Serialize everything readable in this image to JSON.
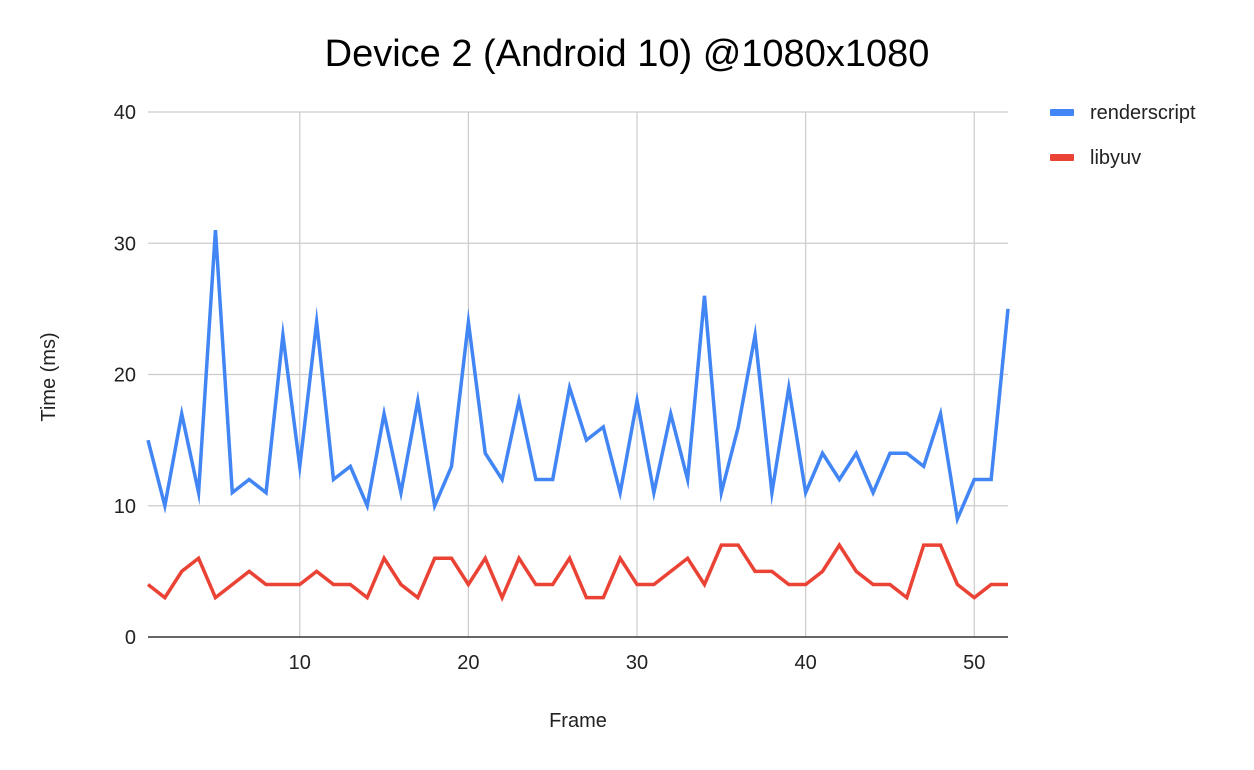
{
  "chart_data": {
    "type": "line",
    "title": "Device 2 (Android 10) @1080x1080",
    "xlabel": "Frame",
    "ylabel": "Time (ms)",
    "xlim": [
      1,
      52
    ],
    "ylim": [
      0,
      40
    ],
    "x_ticks": [
      10,
      20,
      30,
      40,
      50
    ],
    "y_ticks": [
      0,
      10,
      20,
      30,
      40
    ],
    "grid": true,
    "legend_position": "right",
    "x": [
      1,
      2,
      3,
      4,
      5,
      6,
      7,
      8,
      9,
      10,
      11,
      12,
      13,
      14,
      15,
      16,
      17,
      18,
      19,
      20,
      21,
      22,
      23,
      24,
      25,
      26,
      27,
      28,
      29,
      30,
      31,
      32,
      33,
      34,
      35,
      36,
      37,
      38,
      39,
      40,
      41,
      42,
      43,
      44,
      45,
      46,
      47,
      48,
      49,
      50,
      51,
      52
    ],
    "series": [
      {
        "name": "renderscript",
        "color": "#4285f4",
        "values": [
          15,
          10,
          17,
          11,
          31,
          11,
          12,
          11,
          23,
          13,
          24,
          12,
          13,
          10,
          17,
          11,
          18,
          10,
          13,
          24,
          14,
          12,
          18,
          12,
          12,
          19,
          15,
          16,
          11,
          18,
          11,
          17,
          12,
          26,
          11,
          16,
          23,
          11,
          19,
          11,
          14,
          12,
          14,
          11,
          14,
          14,
          13,
          17,
          9,
          12,
          12,
          25
        ]
      },
      {
        "name": "libyuv",
        "color": "#ea4335",
        "values": [
          4,
          3,
          5,
          6,
          3,
          4,
          5,
          4,
          4,
          4,
          5,
          4,
          4,
          3,
          6,
          4,
          3,
          6,
          6,
          4,
          6,
          3,
          6,
          4,
          4,
          6,
          3,
          3,
          6,
          4,
          4,
          5,
          6,
          4,
          7,
          7,
          5,
          5,
          4,
          4,
          5,
          7,
          5,
          4,
          4,
          3,
          7,
          7,
          4,
          3,
          4,
          4
        ]
      }
    ]
  }
}
